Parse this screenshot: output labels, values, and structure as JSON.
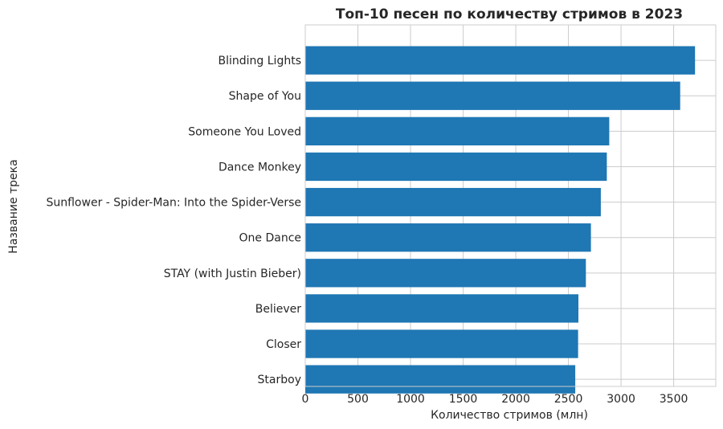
{
  "chart_data": {
    "type": "bar",
    "orientation": "horizontal",
    "title": "Топ-10 песен по количеству стримов в 2023",
    "xlabel": "Количество стримов (млн)",
    "ylabel": "Название трека",
    "xlim": [
      0,
      3900
    ],
    "xticks": [
      0,
      500,
      1000,
      1500,
      2000,
      2500,
      3000,
      3500
    ],
    "grid": true,
    "bar_color": "#1f77b4",
    "categories": [
      "Blinding Lights",
      "Shape of You",
      "Someone You Loved",
      "Dance Monkey",
      "Sunflower - Spider-Man: Into the Spider-Verse",
      "One Dance",
      "STAY (with Justin Bieber)",
      "Believer",
      "Closer",
      "Starboy"
    ],
    "values": [
      3703,
      3562,
      2888,
      2865,
      2808,
      2714,
      2666,
      2595,
      2592,
      2565
    ]
  }
}
